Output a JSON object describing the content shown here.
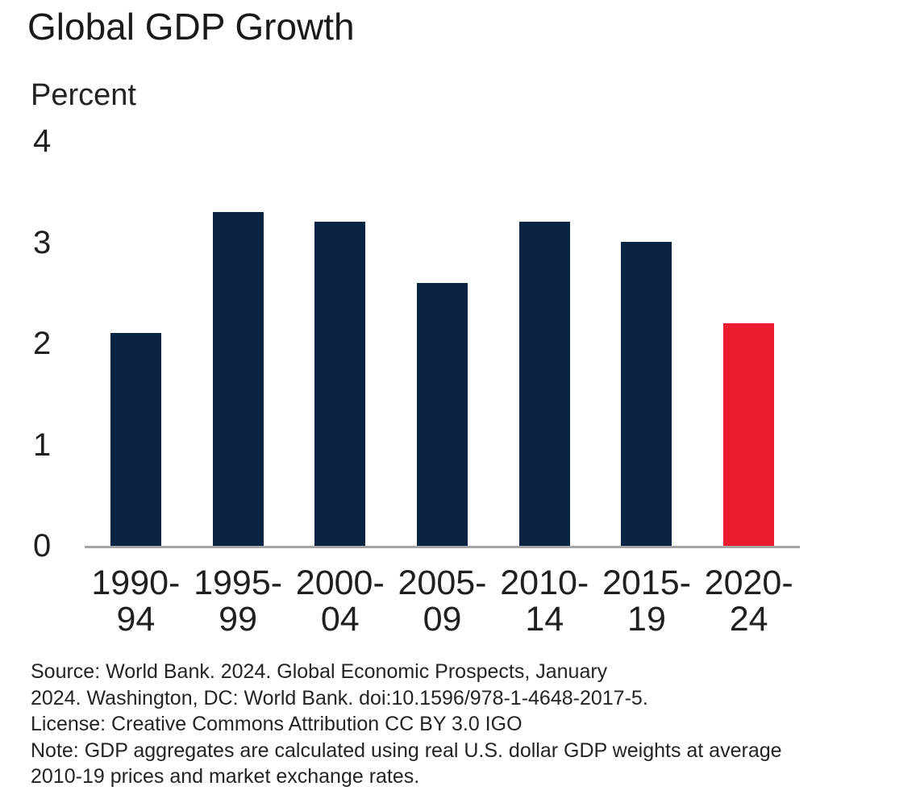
{
  "page": {
    "title": "Global GDP Growth"
  },
  "chart_data": {
    "type": "bar",
    "title": "Global GDP Growth",
    "xlabel": "",
    "ylabel": "Percent",
    "categories": [
      "1990-94",
      "1995-99",
      "2000-04",
      "2005-09",
      "2010-14",
      "2015-19",
      "2020-24"
    ],
    "tick_lines": [
      [
        "1990-",
        "94"
      ],
      [
        "1995-",
        "99"
      ],
      [
        "2000-",
        "04"
      ],
      [
        "2005-",
        "09"
      ],
      [
        "2010-",
        "14"
      ],
      [
        "2015-",
        "19"
      ],
      [
        "2020-",
        "24"
      ]
    ],
    "values": [
      2.1,
      3.3,
      3.2,
      2.6,
      3.2,
      3.0,
      2.2
    ],
    "highlight_index": 6,
    "ylim": [
      0,
      4
    ],
    "yticks": [
      0,
      1,
      2,
      3,
      4
    ],
    "grid": false,
    "legend": false,
    "colors": {
      "bar": "#0c2444",
      "highlight": "#ec1b2d",
      "axis_line": "#a6a6a6"
    }
  },
  "footer": {
    "lines": [
      "Source: World Bank. 2024. Global Economic Prospects, January",
      "2024. Washington, DC: World Bank. doi:10.1596/978-1-4648-2017-5.",
      "License: Creative Commons Attribution CC BY 3.0 IGO",
      "Note: GDP aggregates are calculated using real U.S. dollar GDP weights at average",
      "2010-19 prices and market exchange rates."
    ]
  }
}
